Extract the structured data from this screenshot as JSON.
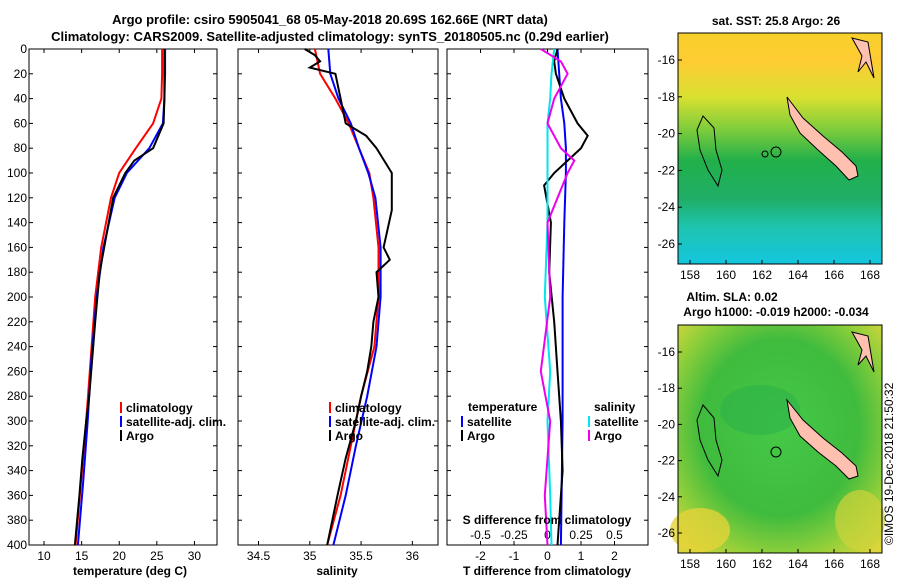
{
  "title": {
    "line1": "Argo profile: csiro 5905041_68 05-May-2018 20.69S 162.66E (NRT data)",
    "line2": "Climatology: CARS2009. Satellite-adjusted climatology: synTS_20180505.nc (0.29d earlier)"
  },
  "colors": {
    "climatology": "#ff0000",
    "satellite": "#0000ff",
    "argo": "#000000",
    "satellite_sal": "#00e5ee",
    "argo_sal": "#ee00ee"
  },
  "chart_data": [
    {
      "type": "line",
      "name": "temperature",
      "xlabel": "temperature (deg C)",
      "ylabel": "",
      "xlim": [
        8,
        33
      ],
      "ylim": [
        400,
        0
      ],
      "xticks": [
        "10",
        "15",
        "20",
        "25",
        "30"
      ],
      "yticks": [
        "0",
        "20",
        "40",
        "60",
        "80",
        "100",
        "120",
        "140",
        "160",
        "180",
        "200",
        "220",
        "240",
        "260",
        "280",
        "300",
        "320",
        "340",
        "360",
        "380",
        "400"
      ],
      "legend": [
        "climatology",
        "satellite-adj. clim.",
        "Argo"
      ],
      "series": [
        {
          "name": "climatology",
          "depth": [
            0,
            20,
            40,
            60,
            80,
            100,
            120,
            160,
            200,
            250,
            300,
            350,
            400
          ],
          "values": [
            25.7,
            25.7,
            25.6,
            24.5,
            22.2,
            20.0,
            18.9,
            17.6,
            16.8,
            16.2,
            15.6,
            14.9,
            14.2
          ]
        },
        {
          "name": "satellite-adj. clim.",
          "depth": [
            0,
            20,
            40,
            60,
            80,
            100,
            120,
            160,
            200,
            250,
            300,
            350,
            400
          ],
          "values": [
            26.1,
            26.1,
            26.0,
            25.8,
            24.0,
            21.0,
            19.4,
            17.9,
            17.0,
            16.3,
            15.8,
            15.2,
            14.5
          ]
        },
        {
          "name": "Argo",
          "depth": [
            0,
            20,
            40,
            60,
            80,
            90,
            100,
            110,
            120,
            140,
            160,
            180,
            200,
            220,
            250,
            280,
            300,
            330,
            360,
            400
          ],
          "values": [
            26.0,
            26.0,
            26.0,
            25.9,
            24.5,
            22.0,
            20.8,
            20.0,
            19.2,
            18.6,
            18.0,
            17.4,
            17.1,
            16.8,
            16.4,
            16.0,
            15.6,
            15.1,
            14.7,
            14.1
          ]
        }
      ]
    },
    {
      "type": "line",
      "name": "salinity",
      "xlabel": "salinity",
      "xlim": [
        34.3,
        36.25
      ],
      "ylim": [
        400,
        0
      ],
      "xticks": [
        "34.5",
        "35",
        "35.5",
        "36"
      ],
      "legend": [
        "climatology",
        "satellite-adj. clim.",
        "Argo"
      ],
      "series": [
        {
          "name": "climatology",
          "depth": [
            0,
            20,
            40,
            60,
            80,
            100,
            120,
            160,
            200,
            240,
            280,
            320,
            360,
            400
          ],
          "values": [
            35.05,
            35.1,
            35.25,
            35.38,
            35.48,
            35.58,
            35.62,
            35.67,
            35.67,
            35.63,
            35.5,
            35.4,
            35.3,
            35.17
          ]
        },
        {
          "name": "satellite-adj. clim.",
          "depth": [
            0,
            20,
            40,
            60,
            80,
            100,
            120,
            160,
            200,
            240,
            280,
            320,
            360,
            400
          ],
          "values": [
            35.18,
            35.2,
            35.28,
            35.4,
            35.48,
            35.57,
            35.64,
            35.69,
            35.69,
            35.65,
            35.56,
            35.45,
            35.35,
            35.23
          ]
        },
        {
          "name": "Argo",
          "depth": [
            0,
            5,
            10,
            15,
            20,
            40,
            60,
            70,
            80,
            100,
            130,
            160,
            170,
            180,
            200,
            220,
            240,
            260,
            280,
            300,
            330,
            360,
            400
          ],
          "values": [
            34.95,
            35.05,
            35.1,
            35.0,
            35.25,
            35.3,
            35.35,
            35.55,
            35.65,
            35.8,
            35.8,
            35.72,
            35.78,
            35.65,
            35.67,
            35.62,
            35.6,
            35.56,
            35.5,
            35.45,
            35.35,
            35.27,
            35.17
          ]
        }
      ]
    },
    {
      "type": "line",
      "name": "difference",
      "xlabel": "T difference from climatology",
      "top_xlabel": "S difference from climatology",
      "xlim": [
        -3,
        3
      ],
      "s_xlim": [
        -0.75,
        0.75
      ],
      "ylim": [
        400,
        0
      ],
      "xticks": [
        "-2",
        "-1",
        "0",
        "1",
        "2"
      ],
      "top_xticks": [
        "-0.5",
        "-0.25",
        "0",
        "0.25",
        "0.5"
      ],
      "legend_left": {
        "title": "temperature",
        "items": [
          "satellite",
          "Argo"
        ]
      },
      "legend_right": {
        "title": "salinity",
        "items": [
          "satellite",
          "Argo"
        ]
      },
      "series": [
        {
          "name": "T satellite",
          "depth": [
            0,
            20,
            40,
            60,
            80,
            100,
            140,
            200,
            300,
            400
          ],
          "values": [
            0.3,
            0.35,
            0.4,
            0.5,
            0.55,
            0.55,
            0.5,
            0.45,
            0.45,
            0.4
          ]
        },
        {
          "name": "T Argo",
          "depth": [
            0,
            10,
            20,
            40,
            60,
            70,
            80,
            90,
            100,
            110,
            140,
            180,
            220,
            260,
            300,
            340,
            400
          ],
          "values": [
            0.3,
            0.2,
            0.25,
            0.5,
            0.9,
            1.2,
            1.0,
            0.6,
            0.2,
            -0.1,
            0.1,
            0.05,
            0.2,
            0.3,
            0.4,
            0.45,
            0.3
          ]
        },
        {
          "name": "S satellite",
          "depth": [
            0,
            20,
            40,
            60,
            80,
            100,
            140,
            200,
            260,
            300,
            360,
            400
          ],
          "values": [
            0.05,
            0.03,
            0.02,
            0.0,
            0.0,
            0.0,
            0.0,
            -0.02,
            0.02,
            0.0,
            0.02,
            0.03
          ]
        },
        {
          "name": "S Argo",
          "depth": [
            0,
            10,
            20,
            40,
            60,
            80,
            90,
            100,
            140,
            200,
            260,
            300,
            360,
            400
          ],
          "values": [
            -0.05,
            0.1,
            0.15,
            0.05,
            0.0,
            0.1,
            0.2,
            0.15,
            0.0,
            0.02,
            -0.05,
            0.02,
            -0.02,
            0.0
          ]
        }
      ]
    }
  ],
  "sst_map": {
    "title": "sat. SST: 25.8 Argo: 26",
    "xticks": [
      "158",
      "160",
      "162",
      "164",
      "166",
      "168"
    ],
    "yticks": [
      "-16",
      "-18",
      "-20",
      "-22",
      "-24",
      "-26"
    ]
  },
  "sla_map": {
    "title1": "Altim. SLA: 0.02",
    "title2": "Argo h1000: -0.019 h2000: -0.034",
    "xticks": [
      "158",
      "160",
      "162",
      "164",
      "166",
      "168"
    ],
    "yticks": [
      "-16",
      "-18",
      "-20",
      "-22",
      "-24",
      "-26"
    ]
  },
  "watermark": "©IMOS 19-Dec-2018 21:50:32"
}
